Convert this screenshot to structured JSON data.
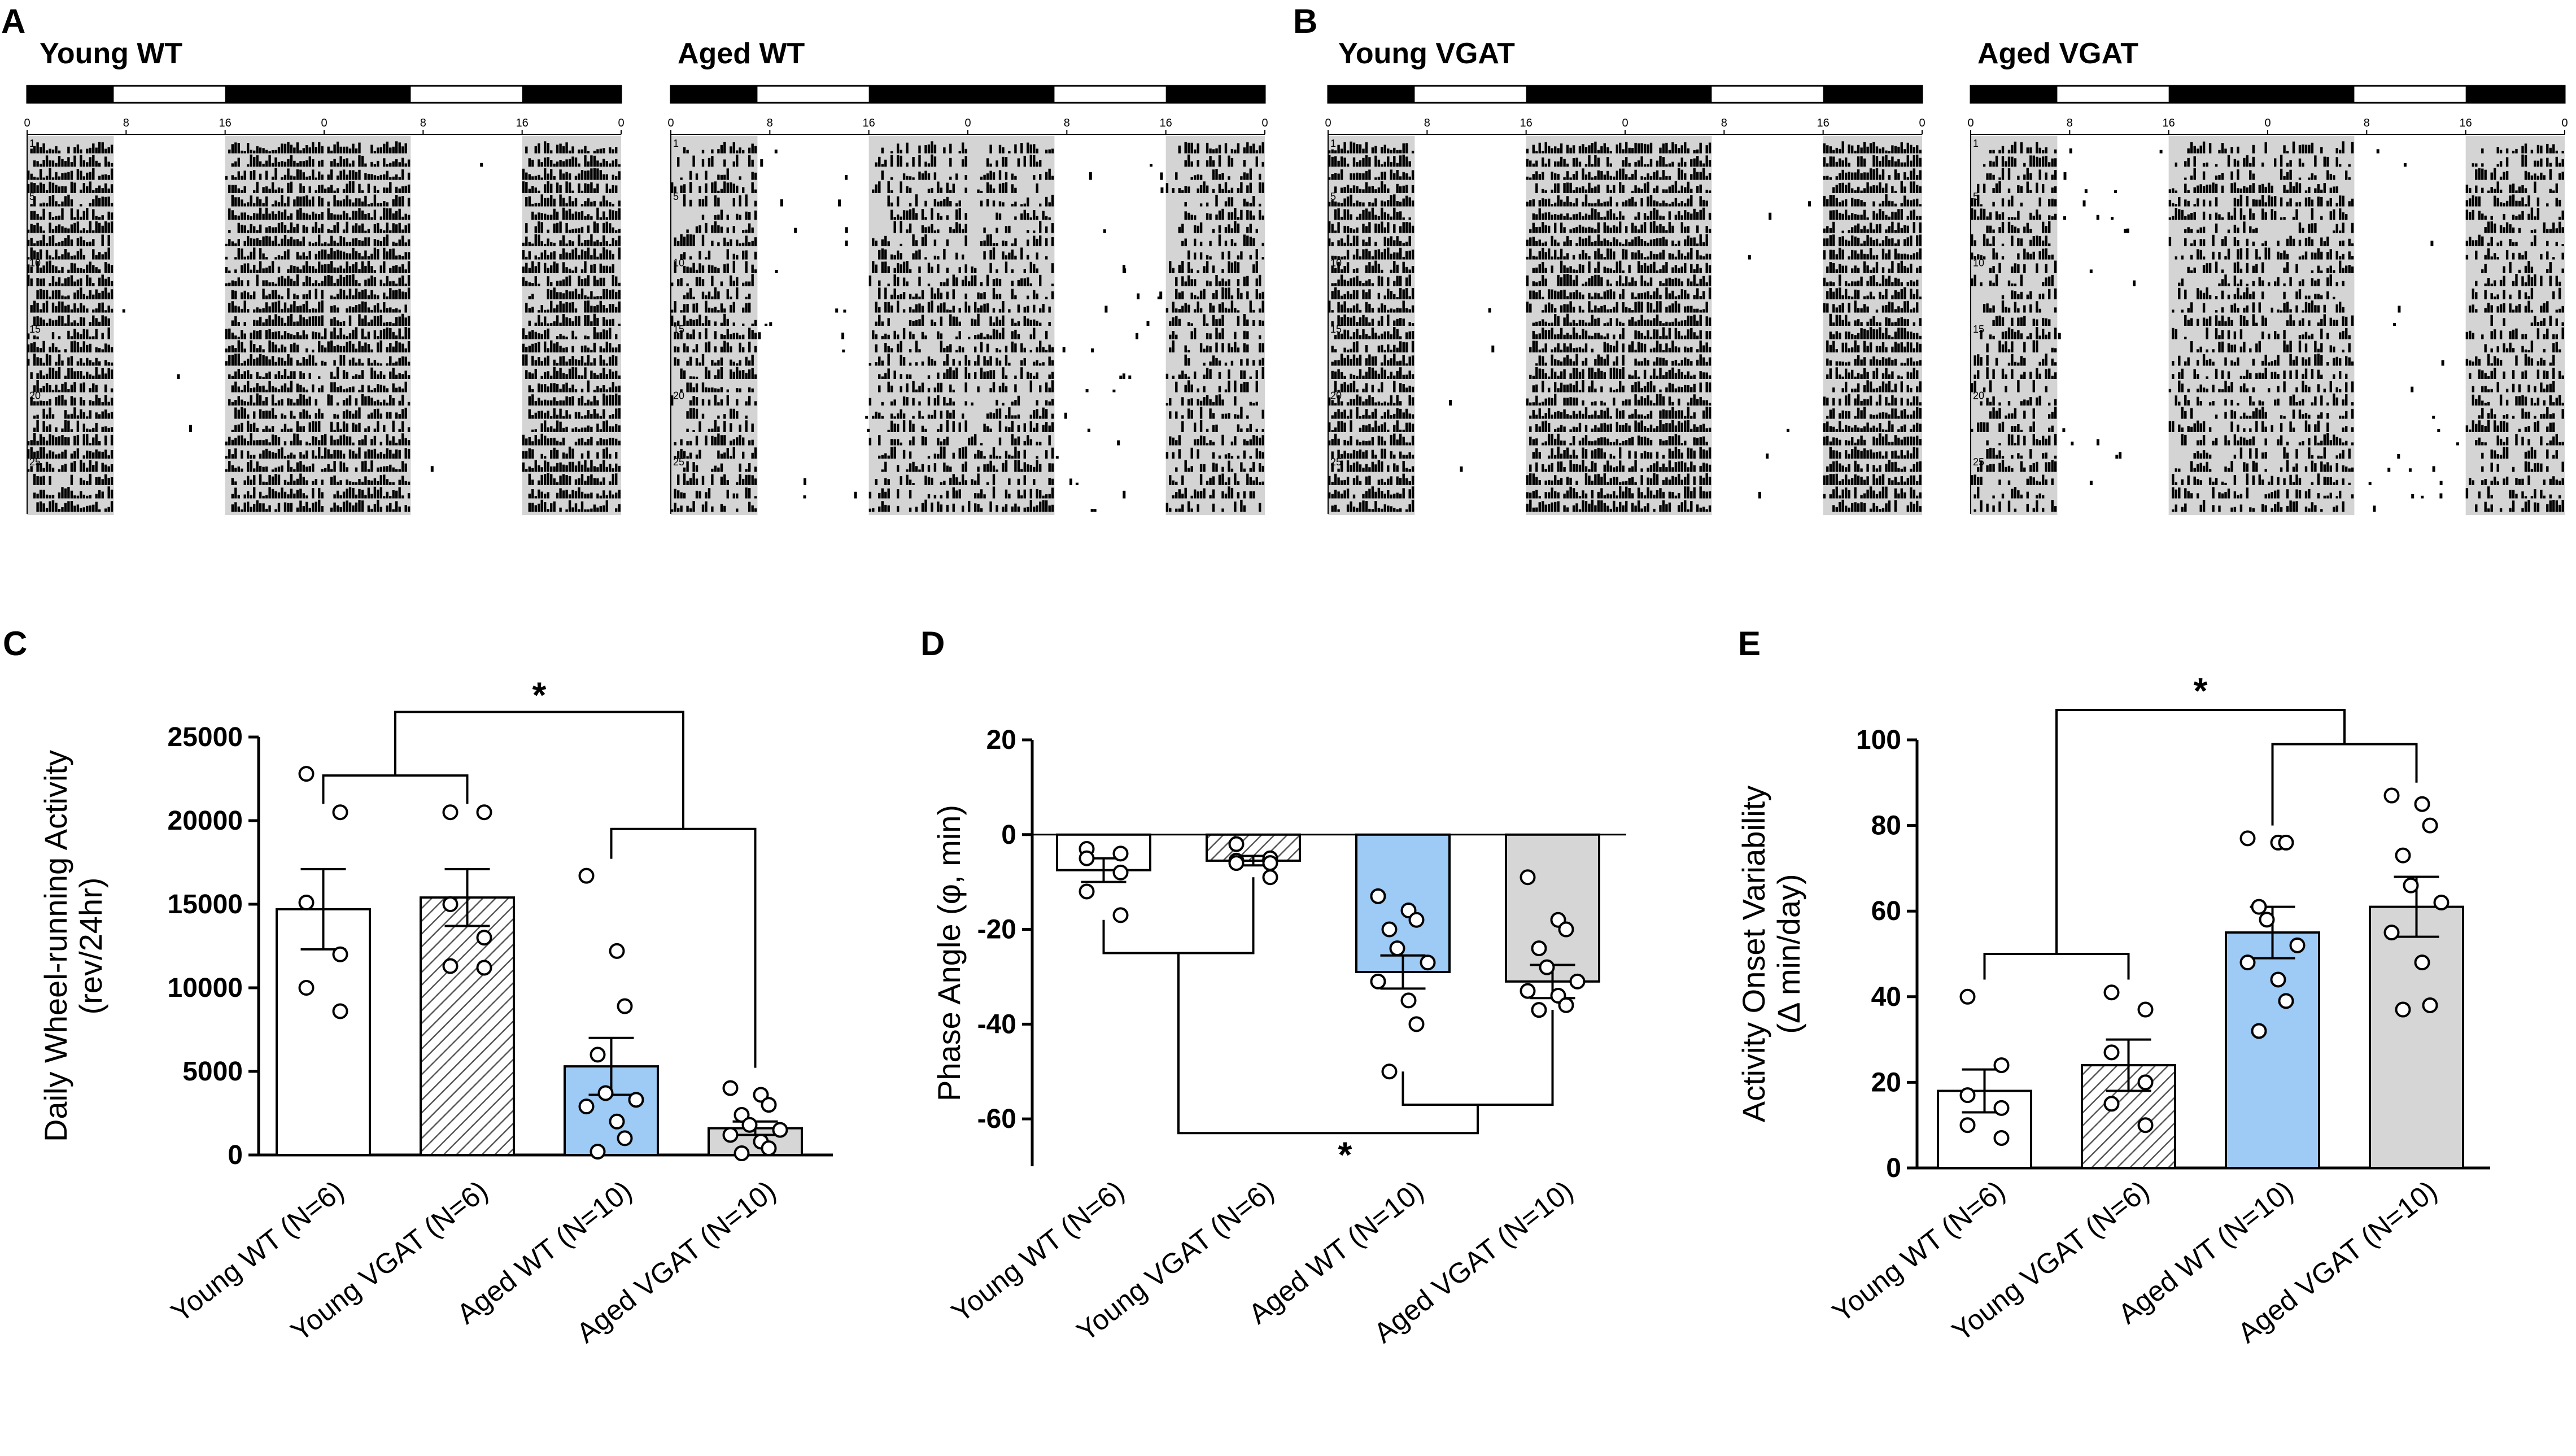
{
  "panels": {
    "A": "A",
    "B": "B",
    "C": "C",
    "D": "D",
    "E": "E"
  },
  "actograms": [
    {
      "title": "Young WT",
      "panel": "A",
      "group": "young"
    },
    {
      "title": "Aged WT",
      "panel": "A",
      "group": "aged"
    },
    {
      "title": "Young VGAT",
      "panel": "B",
      "group": "young"
    },
    {
      "title": "Aged VGAT",
      "panel": "B",
      "group": "aged"
    }
  ],
  "actogram_axis": {
    "hour_ticks": [
      "0",
      "8",
      "16",
      "0",
      "8",
      "16",
      "0"
    ],
    "day_ticks": [
      "1",
      "5",
      "10",
      "15",
      "20",
      "25"
    ],
    "days": 28
  },
  "colors": {
    "white_bar": "#ffffff",
    "hatched_bar": "#cfcfcf",
    "blue_bar": "#9ecbf6",
    "gray_bar": "#d6d6d6",
    "shade": "#d4d4d4",
    "ink": "#000000"
  },
  "chart_data": [
    {
      "panel": "C",
      "type": "bar",
      "ylabel": "Daily Wheel-running Activity",
      "ylabel_units": "(rev/24hr)",
      "ylim": [
        0,
        25000
      ],
      "yticks": [
        0,
        5000,
        10000,
        15000,
        20000,
        25000
      ],
      "ytick_labels": [
        "0",
        "5000",
        "10000",
        "15000",
        "20000",
        "25000"
      ],
      "categories": [
        "Young WT (N=6)",
        "Young VGAT (N=6)",
        "Aged WT (N=10)",
        "Aged VGAT (N=10)"
      ],
      "values": [
        14700,
        15400,
        5300,
        1600
      ],
      "sem": [
        2400,
        1700,
        1700,
        400
      ],
      "points": [
        [
          22800,
          20500,
          15100,
          12000,
          10000,
          8600
        ],
        [
          20500,
          20500,
          15000,
          13000,
          11300,
          11200
        ],
        [
          16700,
          12200,
          8900,
          6000,
          3700,
          3300,
          2900,
          2000,
          1000,
          200
        ],
        [
          4000,
          3600,
          3000,
          2400,
          1800,
          1500,
          1200,
          800,
          400,
          100
        ]
      ],
      "significance": "*"
    },
    {
      "panel": "D",
      "type": "bar",
      "ylabel": "Phase Angle (φ, min)",
      "ylim": [
        -70,
        20
      ],
      "yticks": [
        -60,
        -40,
        -20,
        0,
        20
      ],
      "ytick_labels": [
        "-60",
        "-40",
        "-20",
        "0",
        "20"
      ],
      "categories": [
        "Young WT (N=6)",
        "Young VGAT (N=6)",
        "Aged WT (N=10)",
        "Aged VGAT (N=10)"
      ],
      "values": [
        -7.5,
        -5.5,
        -29,
        -31
      ],
      "sem": [
        2.5,
        1,
        3.5,
        3.5
      ],
      "points": [
        [
          -3,
          -4,
          -5,
          -8,
          -12,
          -17
        ],
        [
          -2,
          -5,
          -5.5,
          -6,
          -6,
          -9
        ],
        [
          -13,
          -16,
          -18,
          -20,
          -24,
          -27,
          -31,
          -35,
          -40,
          -50
        ],
        [
          -9,
          -18,
          -20,
          -24,
          -28,
          -31,
          -33,
          -34,
          -36,
          -37
        ]
      ],
      "significance": "*"
    },
    {
      "panel": "E",
      "type": "bar",
      "ylabel": "Activity Onset Variability",
      "ylabel_units": "(Δ min/day)",
      "ylim": [
        0,
        100
      ],
      "yticks": [
        0,
        20,
        40,
        60,
        80,
        100
      ],
      "ytick_labels": [
        "0",
        "20",
        "40",
        "60",
        "80",
        "100"
      ],
      "categories": [
        "Young WT (N=6)",
        "Young VGAT (N=6)",
        "Aged WT (N=10)",
        "Aged VGAT (N=10)"
      ],
      "values": [
        18,
        24,
        55,
        61
      ],
      "sem": [
        5,
        6,
        6,
        7
      ],
      "points": [
        [
          40,
          24,
          17,
          14,
          10,
          7
        ],
        [
          41,
          37,
          27,
          20,
          15,
          10
        ],
        [
          77,
          76,
          76,
          61,
          58,
          52,
          48,
          44,
          39,
          32
        ],
        [
          87,
          85,
          80,
          73,
          66,
          62,
          55,
          48,
          38,
          37
        ]
      ],
      "significance": "*"
    }
  ]
}
